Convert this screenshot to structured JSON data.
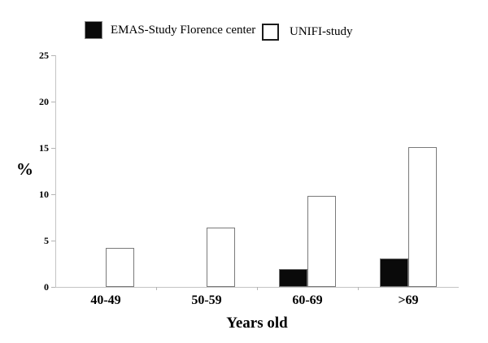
{
  "figure": {
    "background": "#ffffff",
    "text_color": "#000000",
    "axis_color": "#c4c4c4",
    "bar_outline_color": "#7a7a7a"
  },
  "legend": {
    "items": [
      {
        "label": "EMAS-Study Florence center",
        "swatch": "black-filled-square",
        "swatch_color": "#0a0a0a"
      },
      {
        "label": "UNIFI-study",
        "swatch": "white-outlined-square",
        "swatch_color": "#ffffff"
      }
    ]
  },
  "chart_data": {
    "type": "bar",
    "title": "",
    "categories": [
      "40-49",
      "50-59",
      "60-69",
      ">69"
    ],
    "series": [
      {
        "name": "EMAS-Study Florence center",
        "style": "filled",
        "fill": "#0a0a0a",
        "values": [
          0,
          0,
          1.9,
          3.1
        ]
      },
      {
        "name": "UNIFI-study",
        "style": "outlined",
        "fill": "#ffffff",
        "values": [
          4.2,
          6.4,
          9.8,
          15.1
        ]
      }
    ],
    "xlabel": "Years old",
    "ylabel": "%",
    "ylim": [
      0,
      25
    ],
    "yticks": [
      0,
      5,
      10,
      15,
      20,
      25
    ],
    "grid": false,
    "legend_position": "top"
  }
}
